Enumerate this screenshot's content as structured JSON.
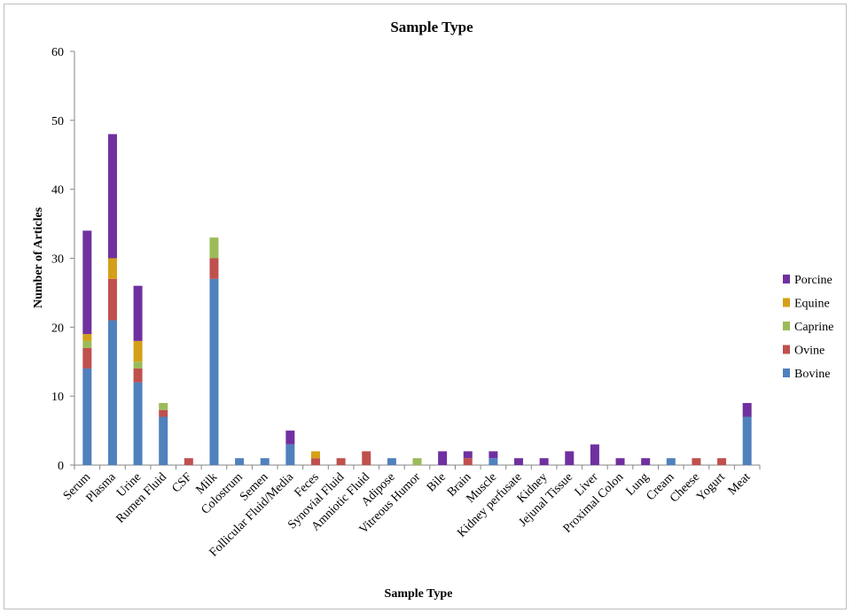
{
  "chart_data": {
    "type": "bar",
    "stacked": true,
    "title": "Sample Type",
    "xlabel": "Sample Type",
    "ylabel": "Number of Articles",
    "ylim": [
      0,
      60
    ],
    "yticks": [
      0,
      10,
      20,
      30,
      40,
      50,
      60
    ],
    "grid": false,
    "legend_position": "right",
    "categories": [
      "Serum",
      "Plasma",
      "Urine",
      "Rumen Fluid",
      "CSF",
      "Milk",
      "Colostrum",
      "Semen",
      "Follicular Fluid/Media",
      "Feces",
      "Synovial Fluid",
      "Amniotic Fluid",
      "Adipose",
      "Vitreous Humor",
      "Bile",
      "Brain",
      "Muscle",
      "Kidney perfusate",
      "Kidney",
      "Jejunal Tissue",
      "Liver",
      "Proximal Colon",
      "Lung",
      "Cream",
      "Cheese",
      "Yogurt",
      "Meat"
    ],
    "series": [
      {
        "name": "Bovine",
        "color": "#4f81bd",
        "values": [
          14,
          21,
          12,
          7,
          0,
          27,
          1,
          1,
          3,
          0,
          0,
          0,
          1,
          0,
          0,
          0,
          1,
          0,
          0,
          0,
          0,
          0,
          0,
          1,
          0,
          0,
          7
        ]
      },
      {
        "name": "Ovine",
        "color": "#c0504d",
        "values": [
          3,
          6,
          2,
          1,
          1,
          3,
          0,
          0,
          0,
          1,
          1,
          2,
          0,
          0,
          0,
          1,
          0,
          0,
          0,
          0,
          0,
          0,
          0,
          0,
          1,
          1,
          0
        ]
      },
      {
        "name": "Caprine",
        "color": "#9bbb59",
        "values": [
          1,
          0,
          1,
          1,
          0,
          3,
          0,
          0,
          0,
          0,
          0,
          0,
          0,
          1,
          0,
          0,
          0,
          0,
          0,
          0,
          0,
          0,
          0,
          0,
          0,
          0,
          0
        ]
      },
      {
        "name": "Equine",
        "color": "#d4a017",
        "values": [
          1,
          3,
          3,
          0,
          0,
          0,
          0,
          0,
          0,
          1,
          0,
          0,
          0,
          0,
          0,
          0,
          0,
          0,
          0,
          0,
          0,
          0,
          0,
          0,
          0,
          0,
          0
        ]
      },
      {
        "name": "Porcine",
        "color": "#7030a0",
        "values": [
          15,
          18,
          8,
          0,
          0,
          0,
          0,
          0,
          2,
          0,
          0,
          0,
          0,
          0,
          2,
          1,
          1,
          1,
          1,
          2,
          3,
          1,
          1,
          0,
          0,
          0,
          2
        ]
      }
    ],
    "legend_order": [
      "Porcine",
      "Equine",
      "Caprine",
      "Ovine",
      "Bovine"
    ]
  }
}
